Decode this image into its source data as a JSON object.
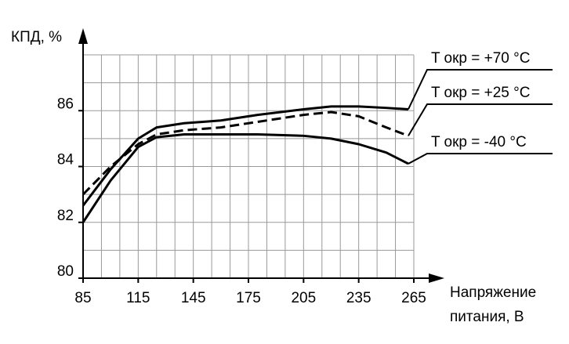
{
  "chart_data": {
    "type": "line",
    "y_label": "КПД, %",
    "x_label_lines": [
      "Напряжение",
      "питания, В"
    ],
    "x": [
      85,
      100,
      115,
      125,
      140,
      160,
      180,
      205,
      220,
      235,
      250,
      262
    ],
    "series": [
      {
        "name": "T окр  = +70 °C",
        "color": "#000000",
        "style": "solid",
        "values": [
          82.6,
          83.9,
          85.0,
          85.4,
          85.55,
          85.65,
          85.85,
          86.05,
          86.15,
          86.15,
          86.1,
          86.05
        ]
      },
      {
        "name": "T окр  = +25 °C",
        "color": "#000000",
        "style": "dashed",
        "values": [
          83.0,
          84.0,
          84.8,
          85.15,
          85.3,
          85.4,
          85.6,
          85.85,
          85.95,
          85.8,
          85.4,
          85.1
        ]
      },
      {
        "name": "T окр  = -40 °C",
        "color": "#000000",
        "style": "solid",
        "values": [
          82.0,
          83.5,
          84.7,
          85.05,
          85.15,
          85.15,
          85.15,
          85.1,
          85.0,
          84.8,
          84.5,
          84.1
        ]
      }
    ],
    "xlim": [
      85,
      265
    ],
    "ylim": [
      80,
      88
    ],
    "xticks": [
      85,
      115,
      145,
      175,
      205,
      235,
      265
    ],
    "yticks": [
      80,
      82,
      84,
      86
    ],
    "xgrid": [
      85,
      95,
      105,
      115,
      125,
      135,
      145,
      155,
      165,
      175,
      185,
      195,
      205,
      215,
      225,
      235,
      245,
      255,
      265
    ],
    "ygrid": [
      81,
      82,
      83,
      84,
      85,
      86,
      87,
      88
    ],
    "grid": true
  }
}
